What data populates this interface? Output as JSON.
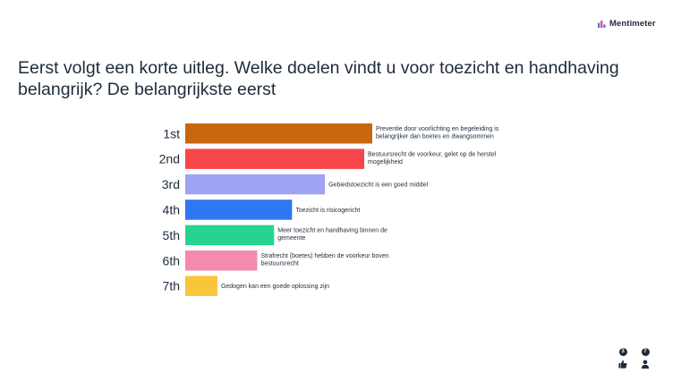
{
  "brand": {
    "name": "Mentimeter"
  },
  "question": "Eerst volgt een korte uitleg. Welke doelen vindt u voor toezicht en handhaving belangrijk? De belangrijkste eerst",
  "chart_data": {
    "type": "bar",
    "orientation": "horizontal",
    "categories": [
      "1st",
      "2nd",
      "3rd",
      "4th",
      "5th",
      "6th",
      "7th"
    ],
    "values": [
      1.0,
      0.957,
      0.747,
      0.571,
      0.475,
      0.385,
      0.172
    ],
    "labels": [
      [
        "Preventie door voorlichting en begeleiding is",
        "belangrijker dan boetes en dwangsommen"
      ],
      [
        "Bestuursrecht de voorkeur, gelet op de herstel",
        "mogelijkheid"
      ],
      [
        "Gebiedstoezicht is een goed middel"
      ],
      [
        "Toezicht is risicogericht"
      ],
      [
        "Meer toezicht en handhaving binnen de",
        "gemeente"
      ],
      [
        "Strafrecht (boetes) hebben de voorkeur boven",
        "bestuursrecht"
      ],
      [
        "Gedogen kan een goede oplossing zijn"
      ]
    ],
    "colors": [
      "#c8680e",
      "#f7464a",
      "#9fa3f2",
      "#2e78f1",
      "#27d48e",
      "#f689b0",
      "#f9c53a"
    ],
    "xlim": [
      0,
      1
    ],
    "grid": false,
    "legend": "none"
  },
  "footer": {
    "reactions_count": "3",
    "participants_count": "7"
  },
  "icons": {
    "brand": "bar-chart-icon",
    "reactions": "thumbs-up-icon",
    "participants": "person-icon"
  }
}
